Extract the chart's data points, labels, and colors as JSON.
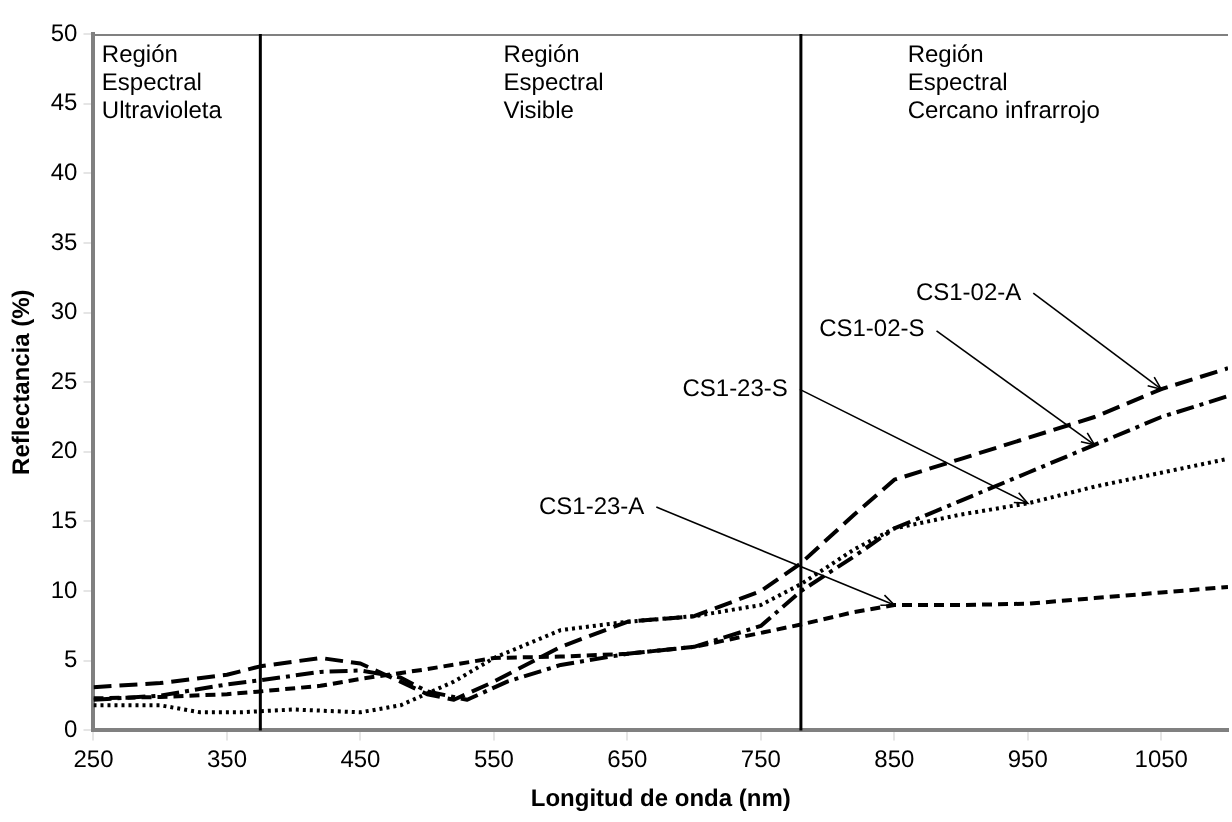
{
  "chart_data": {
    "type": "line",
    "xlabel": "Longitud de onda (nm)",
    "ylabel": "Reflectancia (%)",
    "xlim": [
      250,
      1100
    ],
    "xticks": [
      250,
      350,
      450,
      550,
      650,
      750,
      850,
      950,
      1050
    ],
    "ylim": [
      0,
      50
    ],
    "yticks": [
      0,
      5,
      10,
      15,
      20,
      25,
      30,
      35,
      40,
      45,
      50
    ],
    "grid": false,
    "legend": false,
    "marker": "none",
    "series": [
      {
        "name": "CS1-02-A",
        "color": "#000000",
        "line_style": "dashed",
        "x": [
          250,
          300,
          350,
          375,
          420,
          450,
          480,
          500,
          520,
          550,
          600,
          650,
          700,
          750,
          780,
          820,
          850,
          900,
          950,
          1000,
          1050,
          1100
        ],
        "values": [
          3.1,
          3.4,
          4,
          4.6,
          5.2,
          4.8,
          3.5,
          2.6,
          2.2,
          3.5,
          6,
          7.8,
          8.2,
          10,
          12,
          15.5,
          18,
          19.5,
          21,
          22.5,
          24.5,
          26
        ]
      },
      {
        "name": "CS1-02-S",
        "color": "#000000",
        "line_style": "dashdot",
        "x": [
          250,
          300,
          350,
          375,
          420,
          450,
          480,
          500,
          530,
          560,
          600,
          650,
          700,
          750,
          780,
          820,
          850,
          900,
          950,
          1000,
          1050,
          1100
        ],
        "values": [
          2.2,
          2.5,
          3.3,
          3.6,
          4.2,
          4.3,
          3.8,
          2.8,
          2.2,
          3.5,
          4.7,
          5.5,
          6,
          7.5,
          10,
          12.5,
          14.5,
          16.5,
          18.5,
          20.5,
          22.5,
          24
        ]
      },
      {
        "name": "CS1-23-S",
        "color": "#000000",
        "line_style": "dotted",
        "x": [
          250,
          300,
          330,
          360,
          400,
          450,
          480,
          520,
          550,
          600,
          650,
          700,
          750,
          780,
          820,
          850,
          900,
          950,
          1000,
          1050,
          1100
        ],
        "values": [
          1.8,
          1.8,
          1.3,
          1.3,
          1.5,
          1.3,
          1.8,
          3.5,
          5.2,
          7.2,
          7.8,
          8.2,
          9,
          10.5,
          13,
          14.5,
          15.5,
          16.3,
          17.5,
          18.5,
          19.5
        ]
      },
      {
        "name": "CS1-23-A",
        "color": "#000000",
        "line_style": "shortdash",
        "x": [
          250,
          300,
          350,
          375,
          420,
          450,
          500,
          550,
          600,
          650,
          700,
          750,
          780,
          820,
          850,
          900,
          950,
          1000,
          1050,
          1100
        ],
        "values": [
          2.3,
          2.4,
          2.6,
          2.8,
          3.2,
          3.7,
          4.4,
          5.2,
          5.3,
          5.5,
          6,
          7,
          7.6,
          8.5,
          9,
          9,
          9.1,
          9.5,
          9.9,
          10.3
        ]
      }
    ],
    "ref_lines": [
      {
        "axis": "x",
        "value": 375,
        "color": "#000000"
      },
      {
        "axis": "x",
        "value": 780,
        "color": "#000000"
      }
    ],
    "annotations": [
      "Región\nEspectral\nUltravioleta",
      "Región\nEspectral\nVisible",
      "Región\nEspectral\nCercano infrarrojo"
    ]
  }
}
